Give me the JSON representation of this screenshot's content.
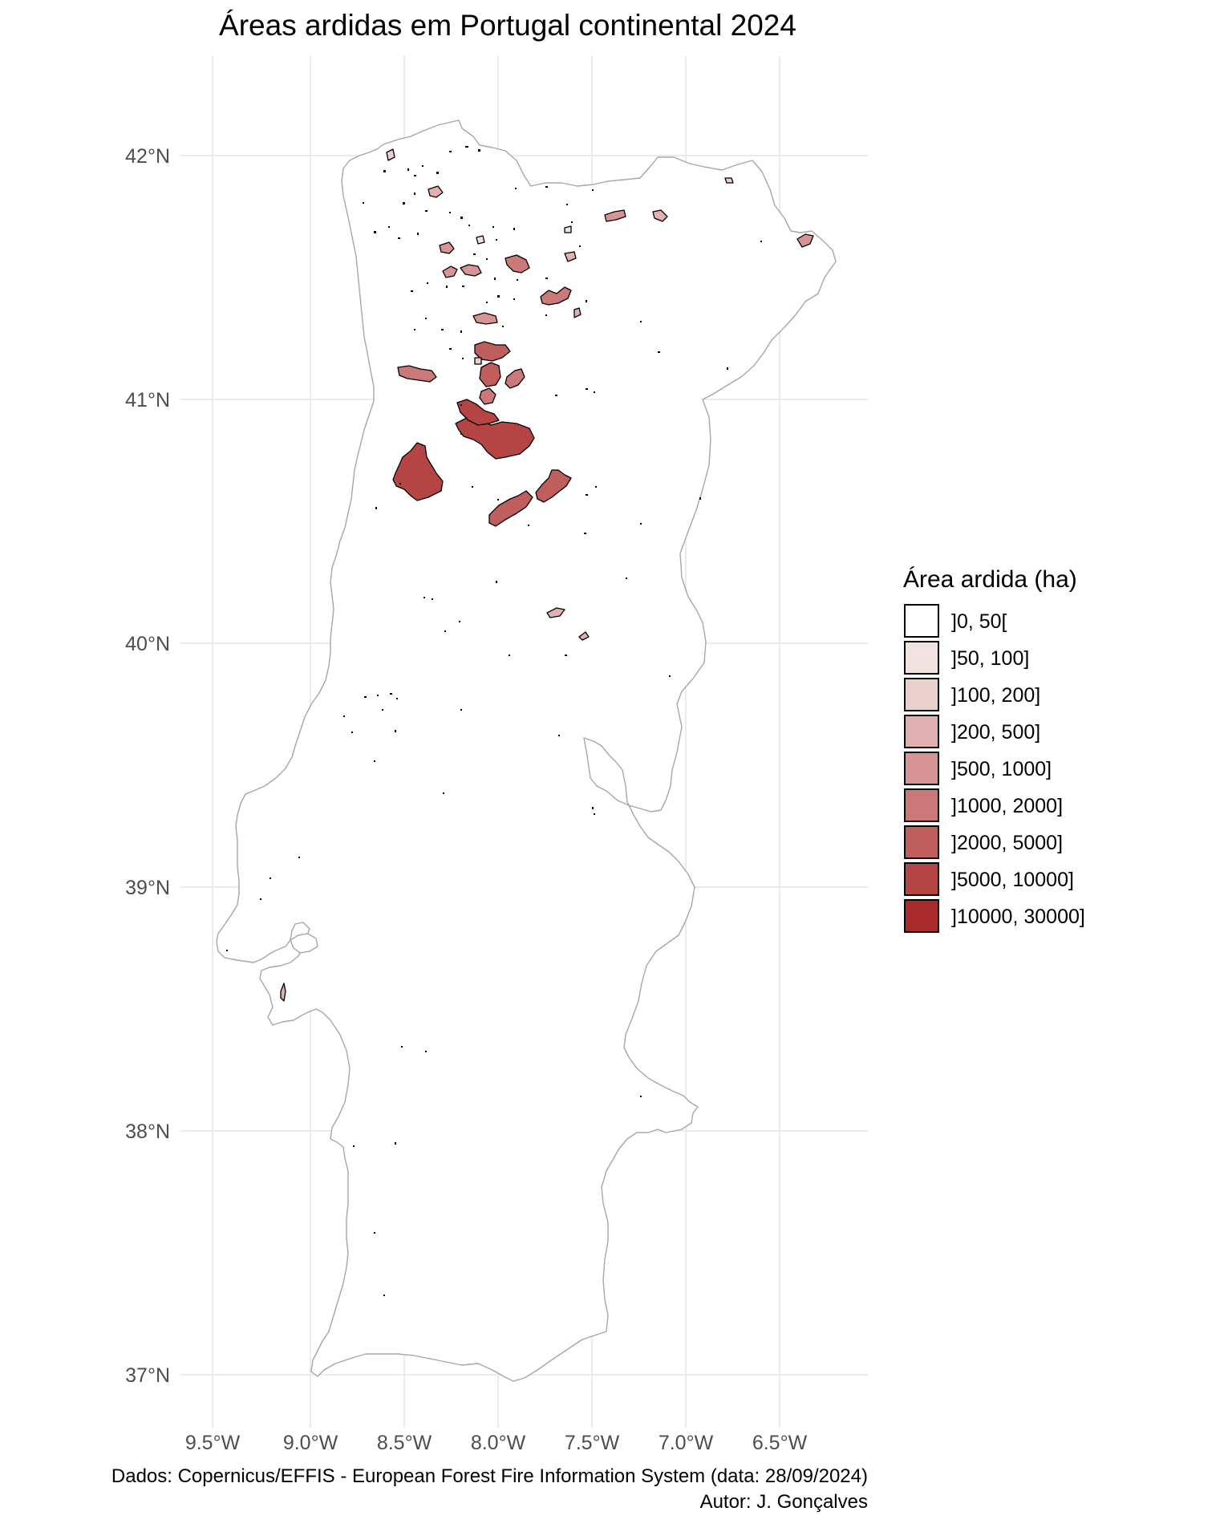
{
  "title": "Áreas ardidas em Portugal continental 2024",
  "axes": {
    "y_ticks": [
      "42°N",
      "41°N",
      "40°N",
      "39°N",
      "38°N",
      "37°N"
    ],
    "x_ticks": [
      "9.5°W",
      "9.0°W",
      "8.5°W",
      "8.0°W",
      "7.5°W",
      "7.0°W",
      "6.5°W"
    ]
  },
  "legend": {
    "title": "Área ardida (ha)",
    "classes": [
      {
        "label": "]0, 50[",
        "color": "#ffffff"
      },
      {
        "label": "]50, 100]",
        "color": "#f3e2e2"
      },
      {
        "label": "]100, 200]",
        "color": "#ebcfcf"
      },
      {
        "label": "]200, 500]",
        "color": "#e1b1b1"
      },
      {
        "label": "]500, 1000]",
        "color": "#d69494"
      },
      {
        "label": "]1000, 2000]",
        "color": "#cb7878"
      },
      {
        "label": "]2000, 5000]",
        "color": "#c05d5d"
      },
      {
        "label": "]5000, 10000]",
        "color": "#b54545"
      },
      {
        "label": "]10000, 30000]",
        "color": "#a82a2a"
      }
    ]
  },
  "caption": {
    "source": "Dados: Copernicus/EFFIS - European Forest Fire Information System (data: 28/09/2024)",
    "author": "Autor: J. Gonçalves"
  }
}
